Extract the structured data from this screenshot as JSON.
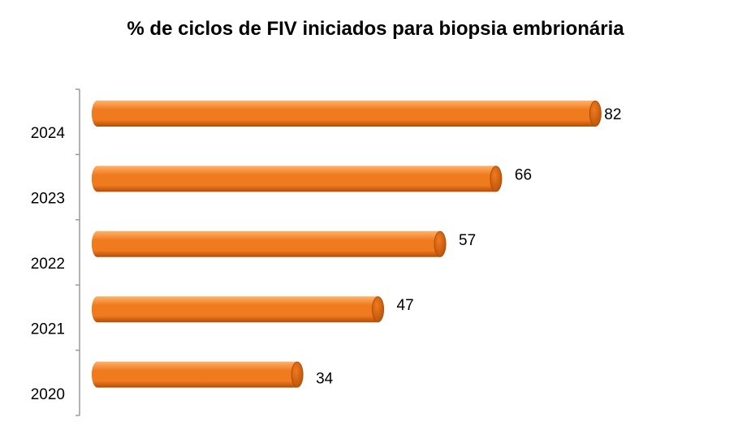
{
  "chart_data": {
    "type": "bar",
    "orientation": "horizontal",
    "title": "% de ciclos de FIV iniciados para biopsia embrionária",
    "categories": [
      "2024",
      "2023",
      "2022",
      "2021",
      "2020"
    ],
    "values": [
      82,
      66,
      57,
      47,
      34
    ],
    "data_labels": [
      "82",
      "66",
      "57",
      "47",
      "34"
    ],
    "xlim": [
      0,
      100
    ],
    "grid": false,
    "legend": "none",
    "bar_color": "#F07A1E",
    "bar_shade_color": "#B24E07",
    "bar_highlight_color": "#FFB168",
    "axis_color": "#9A9A9A"
  }
}
